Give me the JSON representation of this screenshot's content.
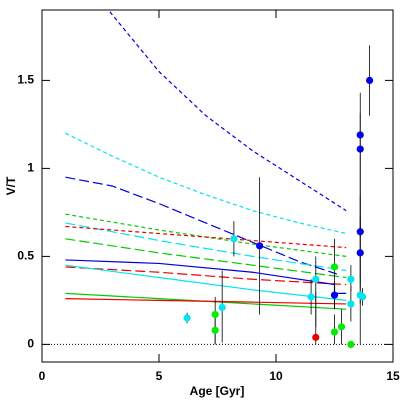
{
  "chart_data": {
    "type": "scatter",
    "x_label": "Age [Gyr]",
    "y_label": "V/T",
    "xlim": [
      0,
      15
    ],
    "ylim": [
      -0.1,
      1.9
    ],
    "xticks": [
      0,
      5,
      10,
      15
    ],
    "yticks": [
      0,
      0.5,
      1,
      1.5
    ],
    "reference_line": 0,
    "lines": [
      {
        "color": "#0000dd",
        "dash": "short",
        "x": [
          2.9,
          5,
          7,
          9,
          11,
          13
        ],
        "values": [
          1.89,
          1.55,
          1.3,
          1.1,
          0.93,
          0.76
        ]
      },
      {
        "color": "#0000dd",
        "dash": "long",
        "x": [
          1,
          3,
          5,
          7,
          9,
          11,
          12.6
        ],
        "values": [
          0.95,
          0.9,
          0.8,
          0.69,
          0.58,
          0.47,
          0.4
        ]
      },
      {
        "color": "#00e5ee",
        "dash": "short",
        "x": [
          1,
          3,
          5,
          7,
          9,
          11,
          13
        ],
        "values": [
          1.2,
          1.07,
          0.95,
          0.85,
          0.76,
          0.69,
          0.63
        ]
      },
      {
        "color": "#00e5ee",
        "dash": "long",
        "x": [
          1,
          5,
          9,
          13
        ],
        "values": [
          0.69,
          0.59,
          0.5,
          0.42
        ]
      },
      {
        "color": "#00cc00",
        "dash": "short",
        "x": [
          1,
          5,
          9,
          13
        ],
        "values": [
          0.74,
          0.65,
          0.57,
          0.5
        ]
      },
      {
        "color": "#ee0000",
        "dash": "short",
        "x": [
          1,
          5,
          9,
          13
        ],
        "values": [
          0.67,
          0.63,
          0.59,
          0.55
        ]
      },
      {
        "color": "#00cc00",
        "dash": "long",
        "x": [
          1,
          5,
          9,
          13
        ],
        "values": [
          0.6,
          0.52,
          0.45,
          0.38
        ]
      },
      {
        "color": "#ee0000",
        "dash": "long",
        "x": [
          1,
          5,
          9,
          13
        ],
        "values": [
          0.44,
          0.41,
          0.37,
          0.34
        ]
      },
      {
        "color": "#0000dd",
        "dash": "solid",
        "x": [
          1,
          5,
          9,
          12.5,
          12.5,
          13
        ],
        "values": [
          0.48,
          0.46,
          0.41,
          0.34,
          0.29,
          0.29
        ]
      },
      {
        "color": "#00e5ee",
        "dash": "solid",
        "x": [
          1,
          5,
          9,
          13
        ],
        "values": [
          0.45,
          0.38,
          0.31,
          0.25
        ]
      },
      {
        "color": "#00cc00",
        "dash": "solid",
        "x": [
          1,
          5,
          9,
          13
        ],
        "values": [
          0.29,
          0.26,
          0.23,
          0.2
        ]
      },
      {
        "color": "#ee0000",
        "dash": "solid",
        "x": [
          1,
          5,
          9,
          13
        ],
        "values": [
          0.26,
          0.25,
          0.24,
          0.23
        ]
      }
    ],
    "series": [
      {
        "color": "#00e5ee",
        "x": [
          6.2,
          7.7,
          8.2,
          11.5,
          11.7,
          13.2,
          13.2,
          13.6,
          13.7
        ],
        "values": [
          0.15,
          0.21,
          0.6,
          0.27,
          0.37,
          0.37,
          0.23,
          0.28,
          0.27
        ],
        "err_minus": [
          0.03,
          0.2,
          0.1,
          0.1,
          0.27,
          0.07,
          0.1,
          0.05,
          0.05
        ],
        "err_plus": [
          0.03,
          0.21,
          0.1,
          0.1,
          0.13,
          0.08,
          0.1,
          0.05,
          0.05
        ]
      },
      {
        "color": "#00ee00",
        "x": [
          7.4,
          7.4,
          12.5,
          12.5,
          12.8,
          13.2
        ],
        "values": [
          0.17,
          0.08,
          0.44,
          0.07,
          0.1,
          0.0
        ],
        "err_minus": [
          0.17,
          0.08,
          0.24,
          0.07,
          0.1,
          0.02
        ],
        "err_plus": [
          0.1,
          0.1,
          0.16,
          0.1,
          0.1,
          0.02
        ]
      },
      {
        "color": "#0000ee",
        "x": [
          9.3,
          12.5,
          13.6,
          13.6,
          13.6,
          13.6,
          14
        ],
        "values": [
          0.56,
          0.28,
          1.19,
          1.11,
          0.64,
          0.52,
          1.5
        ],
        "err_minus": [
          0.39,
          0.08,
          1.19,
          0.5,
          0.3,
          0.2,
          0.2
        ],
        "err_plus": [
          0.39,
          0.05,
          0.24,
          0.2,
          0.2,
          0.2,
          0.2
        ]
      },
      {
        "color": "#ee0000",
        "x": [
          11.7
        ],
        "values": [
          0.04
        ],
        "err_minus": [
          0.04
        ],
        "err_plus": [
          0.26
        ]
      }
    ]
  }
}
